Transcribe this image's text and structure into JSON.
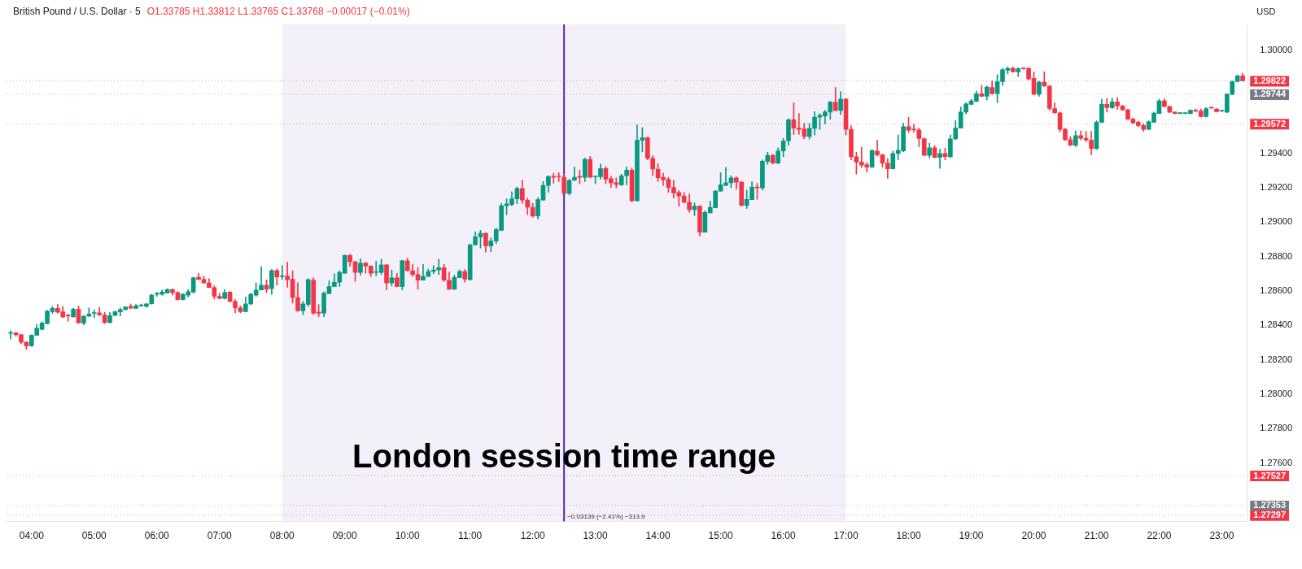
{
  "chart_data": {
    "type": "candlestick",
    "title": "British Pound / U.S. Dollar · 5",
    "subtitle": "O1.33785 H1.33812 L1.33765 C1.33768 −0.00017 (−0.01%)",
    "ylabel": "USD",
    "x": [
      3.6667,
      3.75,
      3.8333,
      3.9167,
      4,
      4.0833,
      4.1667,
      4.25,
      4.3333,
      4.4167,
      4.5,
      4.5833,
      4.6667,
      4.75,
      4.8333,
      4.9167,
      5,
      5.0833,
      5.1667,
      5.25,
      5.3333,
      5.4167,
      5.5,
      5.5833,
      5.6667,
      5.75,
      5.8333,
      5.9167,
      6,
      6.0833,
      6.1667,
      6.25,
      6.3333,
      6.4167,
      6.5,
      6.5833,
      6.6667,
      6.75,
      6.8333,
      6.9167,
      7,
      7.0833,
      7.1667,
      7.25,
      7.3333,
      7.4167,
      7.5,
      7.5833,
      7.6667,
      7.75,
      7.8333,
      7.9167,
      8,
      8.0833,
      8.1667,
      8.25,
      8.3333,
      8.4167,
      8.5,
      8.5833,
      8.6667,
      8.75,
      8.8333,
      8.9167,
      9,
      9.0833,
      9.1667,
      9.25,
      9.3333,
      9.4167,
      9.5,
      9.5833,
      9.6667,
      9.75,
      9.8333,
      9.9167,
      10,
      10.0833,
      10.1667,
      10.25,
      10.3333,
      10.4167,
      10.5,
      10.5833,
      10.6667,
      10.75,
      10.8333,
      10.9167,
      11,
      11.0833,
      11.1667,
      11.25,
      11.3333,
      11.4167,
      11.5,
      11.5833,
      11.6667,
      11.75,
      11.8333,
      11.9167,
      12,
      12.0833,
      12.1667,
      12.25,
      12.3333,
      12.4167,
      12.5,
      12.5833,
      12.6667,
      12.75,
      12.8333,
      12.9167,
      13,
      13.0833,
      13.1667,
      13.25,
      13.3333,
      13.4167,
      13.5,
      13.5833,
      13.6667,
      13.75,
      13.8333,
      13.9167,
      14,
      14.0833,
      14.1667,
      14.25,
      14.3333,
      14.4167,
      14.5,
      14.5833,
      14.6667,
      14.75,
      14.8333,
      14.9167,
      15,
      15.0833,
      15.1667,
      15.25,
      15.3333,
      15.4167,
      15.5,
      15.5833,
      15.6667,
      15.75,
      15.8333,
      15.9167,
      16,
      16.0833,
      16.1667,
      16.25,
      16.3333,
      16.4167,
      16.5,
      16.5833,
      16.6667,
      16.75,
      16.8333,
      16.9167,
      17,
      17.0833,
      17.1667,
      17.25,
      17.3333,
      17.4167,
      17.5,
      17.5833,
      17.6667,
      17.75,
      17.8333,
      17.9167,
      18,
      18.0833,
      18.1667,
      18.25,
      18.3333,
      18.4167,
      18.5,
      18.5833,
      18.6667,
      18.75,
      18.8333,
      18.9167,
      19,
      19.0833,
      19.1667,
      19.25,
      19.3333,
      19.4167,
      19.5,
      19.5833,
      19.6667,
      19.75,
      19.8333,
      19.9167,
      20,
      20.0833,
      20.1667,
      20.25,
      20.3333,
      20.4167,
      20.5,
      20.5833,
      20.6667,
      20.75,
      20.8333,
      20.9167,
      21,
      21.0833,
      21.1667,
      21.25,
      21.3333,
      21.4167,
      21.5,
      21.5833,
      21.6667,
      21.75,
      21.8333,
      21.9167,
      22,
      22.0833,
      22.1667,
      22.25,
      22.3333,
      22.4167,
      22.5,
      22.5833,
      22.6667,
      22.75,
      22.8333,
      22.9167,
      23,
      23.0833,
      23.1667,
      23.25,
      23.3333
    ],
    "ohlc": [
      [
        1.28354,
        1.28369,
        1.28322,
        1.28354
      ],
      [
        1.28357,
        1.2836,
        1.28337,
        1.28346
      ],
      [
        1.28346,
        1.28348,
        1.28292,
        1.28303
      ],
      [
        1.28303,
        1.28306,
        1.28261,
        1.28281
      ],
      [
        1.28281,
        1.28346,
        1.28278,
        1.28343
      ],
      [
        1.28343,
        1.28406,
        1.2834,
        1.28384
      ],
      [
        1.28377,
        1.28421,
        1.28374,
        1.28414
      ],
      [
        1.28411,
        1.28488,
        1.28408,
        1.28483
      ],
      [
        1.2848,
        1.2851,
        1.2847,
        1.28499
      ],
      [
        1.28499,
        1.28522,
        1.2847,
        1.28477
      ],
      [
        1.28479,
        1.2851,
        1.28445,
        1.28449
      ],
      [
        1.28458,
        1.28465,
        1.28424,
        1.28455
      ],
      [
        1.28449,
        1.28499,
        1.28449,
        1.28494
      ],
      [
        1.28494,
        1.28513,
        1.28414,
        1.28414
      ],
      [
        1.28414,
        1.28458,
        1.28402,
        1.28454
      ],
      [
        1.28454,
        1.28502,
        1.28451,
        1.28467
      ],
      [
        1.2847,
        1.28491,
        1.28446,
        1.28471
      ],
      [
        1.28473,
        1.28505,
        1.28458,
        1.28461
      ],
      [
        1.28461,
        1.28476,
        1.28411,
        1.28417
      ],
      [
        1.28417,
        1.28476,
        1.28414,
        1.28458
      ],
      [
        1.28458,
        1.28483,
        1.28458,
        1.2848
      ],
      [
        1.28479,
        1.28502,
        1.28455,
        1.28492
      ],
      [
        1.28491,
        1.2851,
        1.28491,
        1.28508
      ],
      [
        1.2851,
        1.28525,
        1.28498,
        1.28501
      ],
      [
        1.28499,
        1.28522,
        1.28499,
        1.28514
      ],
      [
        1.28514,
        1.28525,
        1.2851,
        1.28518
      ],
      [
        1.28511,
        1.28529,
        1.28505,
        1.28525
      ],
      [
        1.28526,
        1.28582,
        1.28523,
        1.28576
      ],
      [
        1.28581,
        1.28594,
        1.28569,
        1.28582
      ],
      [
        1.28581,
        1.28606,
        1.28576,
        1.28594
      ],
      [
        1.28588,
        1.28613,
        1.28588,
        1.28609
      ],
      [
        1.28609,
        1.28612,
        1.28576,
        1.28591
      ],
      [
        1.28591,
        1.28597,
        1.28547,
        1.2855
      ],
      [
        1.2855,
        1.28585,
        1.28547,
        1.28581
      ],
      [
        1.28576,
        1.28609,
        1.28565,
        1.28596
      ],
      [
        1.28594,
        1.2868,
        1.28588,
        1.28677
      ],
      [
        1.2868,
        1.28702,
        1.28665,
        1.28668
      ],
      [
        1.28668,
        1.28687,
        1.28647,
        1.28647
      ],
      [
        1.28647,
        1.28672,
        1.2862,
        1.2862
      ],
      [
        1.2862,
        1.2863,
        1.28554,
        1.28569
      ],
      [
        1.28569,
        1.28587,
        1.28554,
        1.28557
      ],
      [
        1.28557,
        1.28609,
        1.28553,
        1.28591
      ],
      [
        1.28594,
        1.28597,
        1.28538,
        1.28539
      ],
      [
        1.28539,
        1.28551,
        1.28473,
        1.28502
      ],
      [
        1.28502,
        1.28514,
        1.28473,
        1.2848
      ],
      [
        1.2848,
        1.28565,
        1.28479,
        1.28525
      ],
      [
        1.28525,
        1.28588,
        1.2852,
        1.28581
      ],
      [
        1.28576,
        1.28647,
        1.28569,
        1.28606
      ],
      [
        1.28606,
        1.28742,
        1.28606,
        1.28634
      ],
      [
        1.28634,
        1.28665,
        1.28591,
        1.2861
      ],
      [
        1.28614,
        1.28725,
        1.2858,
        1.28719
      ],
      [
        1.28719,
        1.28728,
        1.28634,
        1.28681
      ],
      [
        1.28684,
        1.28748,
        1.28666,
        1.28687
      ],
      [
        1.28687,
        1.28767,
        1.28622,
        1.28666
      ],
      [
        1.28669,
        1.28718,
        1.2853,
        1.28562
      ],
      [
        1.28562,
        1.28648,
        1.28482,
        1.28485
      ],
      [
        1.28485,
        1.2854,
        1.28462,
        1.28525
      ],
      [
        1.28522,
        1.28672,
        1.28511,
        1.28666
      ],
      [
        1.28663,
        1.28678,
        1.28465,
        1.28471
      ],
      [
        1.28477,
        1.28521,
        1.2845,
        1.28471
      ],
      [
        1.28471,
        1.28595,
        1.28451,
        1.28588
      ],
      [
        1.28585,
        1.28659,
        1.28585,
        1.28626
      ],
      [
        1.28626,
        1.28699,
        1.28626,
        1.28651
      ],
      [
        1.28651,
        1.28718,
        1.28626,
        1.28708
      ],
      [
        1.28703,
        1.2881,
        1.28703,
        1.28807
      ],
      [
        1.28807,
        1.28814,
        1.28743,
        1.2877
      ],
      [
        1.2877,
        1.28773,
        1.28656,
        1.28708
      ],
      [
        1.28708,
        1.28788,
        1.28691,
        1.28762
      ],
      [
        1.28762,
        1.28767,
        1.28703,
        1.28745
      ],
      [
        1.28745,
        1.28748,
        1.28684,
        1.28703
      ],
      [
        1.28708,
        1.28773,
        1.28688,
        1.28711
      ],
      [
        1.28708,
        1.28785,
        1.28696,
        1.28752
      ],
      [
        1.28752,
        1.28755,
        1.28607,
        1.28647
      ],
      [
        1.28647,
        1.28722,
        1.28629,
        1.28677
      ],
      [
        1.28677,
        1.28703,
        1.28625,
        1.28626
      ],
      [
        1.28626,
        1.28779,
        1.28607,
        1.28776
      ],
      [
        1.28776,
        1.28791,
        1.28717,
        1.28718
      ],
      [
        1.28718,
        1.28755,
        1.28684,
        1.28696
      ],
      [
        1.28696,
        1.28737,
        1.2861,
        1.28663
      ],
      [
        1.28663,
        1.28755,
        1.28663,
        1.28685
      ],
      [
        1.28685,
        1.28728,
        1.28684,
        1.28714
      ],
      [
        1.28714,
        1.28748,
        1.287,
        1.28722
      ],
      [
        1.28722,
        1.28785,
        1.28696,
        1.28736
      ],
      [
        1.28736,
        1.28755,
        1.28656,
        1.28663
      ],
      [
        1.28663,
        1.28711,
        1.2861,
        1.2861
      ],
      [
        1.2861,
        1.28693,
        1.2861,
        1.28679
      ],
      [
        1.28678,
        1.28722,
        1.28678,
        1.28714
      ],
      [
        1.28714,
        1.28725,
        1.28651,
        1.28669
      ],
      [
        1.28666,
        1.28873,
        1.28663,
        1.28869
      ],
      [
        1.28869,
        1.28945,
        1.28866,
        1.28915
      ],
      [
        1.28915,
        1.28953,
        1.2885,
        1.28936
      ],
      [
        1.28936,
        1.28939,
        1.28826,
        1.28862
      ],
      [
        1.28862,
        1.28909,
        1.28829,
        1.28891
      ],
      [
        1.28891,
        1.28965,
        1.28876,
        1.28958
      ],
      [
        1.28953,
        1.2911,
        1.2895,
        1.29096
      ],
      [
        1.29096,
        1.29136,
        1.29044,
        1.29106
      ],
      [
        1.29103,
        1.29176,
        1.29096,
        1.29136
      ],
      [
        1.29136,
        1.29205,
        1.29107,
        1.29196
      ],
      [
        1.29196,
        1.29244,
        1.2911,
        1.29128
      ],
      [
        1.29128,
        1.2914,
        1.29044,
        1.29087
      ],
      [
        1.29087,
        1.2911,
        1.29029,
        1.29036
      ],
      [
        1.29036,
        1.29143,
        1.29019,
        1.29131
      ],
      [
        1.29128,
        1.29236,
        1.29128,
        1.29214
      ],
      [
        1.29214,
        1.2927,
        1.29175,
        1.29266
      ],
      [
        1.29266,
        1.29285,
        1.29226,
        1.29261
      ],
      [
        1.29266,
        1.29288,
        1.29236,
        1.29264
      ],
      [
        1.29261,
        1.29279,
        1.29167,
        1.29167
      ],
      [
        1.29167,
        1.2925,
        1.29158,
        1.29244
      ],
      [
        1.29244,
        1.29321,
        1.29241,
        1.29261
      ],
      [
        1.29264,
        1.29303,
        1.29224,
        1.29261
      ],
      [
        1.29261,
        1.29374,
        1.29236,
        1.29365
      ],
      [
        1.29365,
        1.29383,
        1.29261,
        1.29261
      ],
      [
        1.29264,
        1.2927,
        1.29224,
        1.29267
      ],
      [
        1.29264,
        1.29338,
        1.2925,
        1.29312
      ],
      [
        1.29312,
        1.29324,
        1.29224,
        1.2925
      ],
      [
        1.29253,
        1.29267,
        1.29202,
        1.29229
      ],
      [
        1.29229,
        1.29258,
        1.29199,
        1.2922
      ],
      [
        1.29217,
        1.29279,
        1.29214,
        1.2927
      ],
      [
        1.2927,
        1.29321,
        1.29217,
        1.29303
      ],
      [
        1.29303,
        1.29315,
        1.29118,
        1.29125
      ],
      [
        1.29125,
        1.29566,
        1.29122,
        1.29476
      ],
      [
        1.29476,
        1.29549,
        1.29409,
        1.29492
      ],
      [
        1.29492,
        1.29495,
        1.29362,
        1.29371
      ],
      [
        1.29371,
        1.29386,
        1.2927,
        1.29309
      ],
      [
        1.29309,
        1.29341,
        1.29236,
        1.29258
      ],
      [
        1.29261,
        1.29285,
        1.29214,
        1.29247
      ],
      [
        1.2925,
        1.29261,
        1.29173,
        1.29202
      ],
      [
        1.29202,
        1.29244,
        1.2914,
        1.2917
      ],
      [
        1.29173,
        1.29184,
        1.29093,
        1.29152
      ],
      [
        1.29152,
        1.29173,
        1.29113,
        1.29116
      ],
      [
        1.29116,
        1.29164,
        1.29058,
        1.29073
      ],
      [
        1.29073,
        1.29113,
        1.29039,
        1.29093
      ],
      [
        1.29093,
        1.29096,
        1.28921,
        1.28942
      ],
      [
        1.28942,
        1.29066,
        1.28942,
        1.29057
      ],
      [
        1.29054,
        1.29122,
        1.29054,
        1.29087
      ],
      [
        1.29084,
        1.29184,
        1.29084,
        1.29181
      ],
      [
        1.29181,
        1.29288,
        1.29181,
        1.29217
      ],
      [
        1.29214,
        1.29318,
        1.29214,
        1.29229
      ],
      [
        1.29229,
        1.2927,
        1.29199,
        1.29258
      ],
      [
        1.29258,
        1.29264,
        1.29192,
        1.29233
      ],
      [
        1.29233,
        1.29236,
        1.29096,
        1.29098
      ],
      [
        1.29098,
        1.29187,
        1.2908,
        1.29133
      ],
      [
        1.29131,
        1.29235,
        1.29131,
        1.29204
      ],
      [
        1.29204,
        1.29226,
        1.29133,
        1.29199
      ],
      [
        1.29199,
        1.29362,
        1.29187,
        1.29355
      ],
      [
        1.29353,
        1.29407,
        1.29335,
        1.29389
      ],
      [
        1.29389,
        1.29395,
        1.2934,
        1.29344
      ],
      [
        1.29344,
        1.29433,
        1.2934,
        1.29414
      ],
      [
        1.29414,
        1.29488,
        1.2938,
        1.29473
      ],
      [
        1.29473,
        1.29602,
        1.29448,
        1.29596
      ],
      [
        1.29596,
        1.29695,
        1.2951,
        1.29547
      ],
      [
        1.29547,
        1.29632,
        1.2951,
        1.2954
      ],
      [
        1.29543,
        1.29574,
        1.29484,
        1.29498
      ],
      [
        1.29498,
        1.29574,
        1.29484,
        1.29546
      ],
      [
        1.29546,
        1.29643,
        1.29507,
        1.29611
      ],
      [
        1.29611,
        1.29632,
        1.2954,
        1.29621
      ],
      [
        1.29618,
        1.29651,
        1.29572,
        1.2964
      ],
      [
        1.2964,
        1.29703,
        1.29599,
        1.29698
      ],
      [
        1.29698,
        1.29784,
        1.29646,
        1.29649
      ],
      [
        1.29649,
        1.29759,
        1.29626,
        1.29716
      ],
      [
        1.29716,
        1.29718,
        1.29507,
        1.2954
      ],
      [
        1.2954,
        1.29561,
        1.29362,
        1.2938
      ],
      [
        1.2938,
        1.29407,
        1.2928,
        1.2935
      ],
      [
        1.2935,
        1.29436,
        1.29317,
        1.29332
      ],
      [
        1.29335,
        1.29347,
        1.2929,
        1.2932
      ],
      [
        1.2932,
        1.29421,
        1.29317,
        1.29417
      ],
      [
        1.29414,
        1.29478,
        1.29384,
        1.29392
      ],
      [
        1.29392,
        1.29395,
        1.2932,
        1.29344
      ],
      [
        1.29344,
        1.2937,
        1.29255,
        1.2931
      ],
      [
        1.2931,
        1.29414,
        1.2931,
        1.29399
      ],
      [
        1.29399,
        1.29507,
        1.29362,
        1.29418
      ],
      [
        1.29415,
        1.29575,
        1.2941,
        1.29555
      ],
      [
        1.29555,
        1.2961,
        1.29521,
        1.29535
      ],
      [
        1.2954,
        1.2957,
        1.29522,
        1.29537
      ],
      [
        1.29537,
        1.29547,
        1.29439,
        1.29486
      ],
      [
        1.29486,
        1.29489,
        1.29389,
        1.29389
      ],
      [
        1.29389,
        1.29458,
        1.29374,
        1.29433
      ],
      [
        1.29433,
        1.29445,
        1.29374,
        1.29377
      ],
      [
        1.29377,
        1.29424,
        1.29313,
        1.29399
      ],
      [
        1.29399,
        1.2943,
        1.29362,
        1.29381
      ],
      [
        1.2938,
        1.29507,
        1.29377,
        1.29484
      ],
      [
        1.29484,
        1.29592,
        1.2948,
        1.29547
      ],
      [
        1.29547,
        1.2967,
        1.29547,
        1.2964
      ],
      [
        1.2964,
        1.29695,
        1.29629,
        1.29688
      ],
      [
        1.29685,
        1.29715,
        1.29683,
        1.29706
      ],
      [
        1.29703,
        1.29762,
        1.297,
        1.29747
      ],
      [
        1.29747,
        1.29795,
        1.29729,
        1.29732
      ],
      [
        1.29732,
        1.29792,
        1.29711,
        1.29786
      ],
      [
        1.29784,
        1.29821,
        1.29744,
        1.29747
      ],
      [
        1.29747,
        1.29858,
        1.29695,
        1.29817
      ],
      [
        1.29817,
        1.29895,
        1.29795,
        1.29886
      ],
      [
        1.29883,
        1.29904,
        1.29862,
        1.29895
      ],
      [
        1.29895,
        1.29904,
        1.29871,
        1.29874
      ],
      [
        1.29874,
        1.29898,
        1.29847,
        1.29892
      ],
      [
        1.29895,
        1.29898,
        1.29889,
        1.29892
      ],
      [
        1.29895,
        1.29898,
        1.29827,
        1.29833
      ],
      [
        1.29836,
        1.29874,
        1.29741,
        1.29744
      ],
      [
        1.29744,
        1.29821,
        1.29732,
        1.29814
      ],
      [
        1.29814,
        1.29874,
        1.29789,
        1.29792
      ],
      [
        1.29792,
        1.29795,
        1.29651,
        1.29661
      ],
      [
        1.29661,
        1.29695,
        1.29632,
        1.29636
      ],
      [
        1.29636,
        1.2964,
        1.29525,
        1.2954
      ],
      [
        1.2954,
        1.29547,
        1.29473,
        1.2948
      ],
      [
        1.2948,
        1.29498,
        1.29445,
        1.29448
      ],
      [
        1.29448,
        1.29531,
        1.29439,
        1.29503
      ],
      [
        1.29503,
        1.29531,
        1.29478,
        1.29488
      ],
      [
        1.29488,
        1.29528,
        1.29469,
        1.29478
      ],
      [
        1.29478,
        1.29528,
        1.29392,
        1.29429
      ],
      [
        1.29427,
        1.2959,
        1.29424,
        1.29581
      ],
      [
        1.29581,
        1.29715,
        1.29577,
        1.29685
      ],
      [
        1.29685,
        1.29721,
        1.2964,
        1.29666
      ],
      [
        1.29666,
        1.29721,
        1.29661,
        1.297
      ],
      [
        1.297,
        1.29724,
        1.29655,
        1.29676
      ],
      [
        1.29676,
        1.2968,
        1.29649,
        1.29653
      ],
      [
        1.29653,
        1.29658,
        1.29596,
        1.29599
      ],
      [
        1.29599,
        1.29606,
        1.29572,
        1.29577
      ],
      [
        1.29581,
        1.29587,
        1.29555,
        1.29562
      ],
      [
        1.29562,
        1.29572,
        1.29528,
        1.2954
      ],
      [
        1.2954,
        1.2959,
        1.2954,
        1.29584
      ],
      [
        1.29581,
        1.2964,
        1.29581,
        1.29635
      ],
      [
        1.29632,
        1.29715,
        1.29632,
        1.29706
      ],
      [
        1.29706,
        1.29718,
        1.2967,
        1.29673
      ],
      [
        1.29673,
        1.29673,
        1.29636,
        1.2964
      ],
      [
        1.2964,
        1.2964,
        1.29629,
        1.29632
      ],
      [
        1.29632,
        1.29635,
        1.29629,
        1.29632
      ],
      [
        1.29632,
        1.29635,
        1.29629,
        1.29632
      ],
      [
        1.29632,
        1.29653,
        1.29629,
        1.29651
      ],
      [
        1.29651,
        1.29658,
        1.2964,
        1.29646
      ],
      [
        1.29646,
        1.29658,
        1.29611,
        1.29614
      ],
      [
        1.29614,
        1.29667,
        1.29611,
        1.29661
      ],
      [
        1.29666,
        1.29667,
        1.29661,
        1.29664
      ],
      [
        1.29658,
        1.29661,
        1.2964,
        1.29643
      ],
      [
        1.29646,
        1.29649,
        1.29643,
        1.29646
      ],
      [
        1.2964,
        1.29747,
        1.29637,
        1.29744
      ],
      [
        1.29744,
        1.29821,
        1.29741,
        1.29818
      ],
      [
        1.29818,
        1.29857,
        1.29815,
        1.29851
      ],
      [
        1.29851,
        1.29866,
        1.29821,
        1.29822
      ]
    ],
    "colors": [
      "#089981",
      "#f23645",
      "#f23645",
      "#f23645",
      "#089981",
      "#089981",
      "#089981",
      "#089981",
      "#089981",
      "#f23645",
      "#f23645",
      "#f23645",
      "#089981",
      "#f23645",
      "#089981",
      "#089981",
      "#089981",
      "#f23645",
      "#f23645",
      "#089981",
      "#089981",
      "#089981",
      "#089981",
      "#f23645",
      "#089981",
      "#089981",
      "#089981",
      "#089981",
      "#089981",
      "#089981",
      "#089981",
      "#f23645",
      "#f23645",
      "#089981",
      "#089981",
      "#089981",
      "#f23645",
      "#f23645",
      "#f23645",
      "#f23645",
      "#f23645",
      "#089981",
      "#f23645",
      "#f23645",
      "#f23645",
      "#089981",
      "#089981",
      "#089981",
      "#089981",
      "#f23645",
      "#089981",
      "#f23645",
      "#089981",
      "#f23645",
      "#f23645",
      "#f23645",
      "#089981",
      "#089981",
      "#f23645",
      "#f23645",
      "#089981",
      "#089981",
      "#089981",
      "#089981",
      "#089981",
      "#f23645",
      "#f23645",
      "#089981",
      "#f23645",
      "#f23645",
      "#089981",
      "#089981",
      "#f23645",
      "#089981",
      "#f23645",
      "#089981",
      "#f23645",
      "#f23645",
      "#f23645",
      "#089981",
      "#089981",
      "#089981",
      "#089981",
      "#f23645",
      "#f23645",
      "#089981",
      "#089981",
      "#f23645",
      "#089981",
      "#089981",
      "#089981",
      "#f23645",
      "#089981",
      "#089981",
      "#089981",
      "#089981",
      "#089981",
      "#089981",
      "#f23645",
      "#f23645",
      "#f23645",
      "#089981",
      "#089981",
      "#089981",
      "#f23645",
      "#f23645",
      "#f23645",
      "#089981",
      "#089981",
      "#f23645",
      "#089981",
      "#f23645",
      "#089981",
      "#089981",
      "#f23645",
      "#f23645",
      "#f23645",
      "#089981",
      "#089981",
      "#f23645",
      "#089981",
      "#089981",
      "#f23645",
      "#f23645",
      "#f23645",
      "#f23645",
      "#f23645",
      "#f23645",
      "#f23645",
      "#f23645",
      "#f23645",
      "#089981",
      "#f23645",
      "#089981",
      "#089981",
      "#089981",
      "#089981",
      "#089981",
      "#089981",
      "#f23645",
      "#f23645",
      "#089981",
      "#089981",
      "#f23645",
      "#089981",
      "#089981",
      "#f23645",
      "#089981",
      "#089981",
      "#089981",
      "#f23645",
      "#f23645",
      "#f23645",
      "#089981",
      "#089981",
      "#089981",
      "#089981",
      "#089981",
      "#f23645",
      "#089981",
      "#f23645",
      "#f23645",
      "#f23645",
      "#f23645",
      "#f23645",
      "#089981",
      "#f23645",
      "#f23645",
      "#f23645",
      "#089981",
      "#089981",
      "#089981",
      "#f23645",
      "#f23645",
      "#f23645",
      "#f23645",
      "#089981",
      "#f23645",
      "#089981",
      "#f23645",
      "#089981",
      "#089981",
      "#089981",
      "#089981",
      "#089981",
      "#089981",
      "#f23645",
      "#089981",
      "#f23645",
      "#089981",
      "#089981",
      "#089981",
      "#f23645",
      "#089981",
      "#f23645",
      "#f23645",
      "#f23645",
      "#089981",
      "#f23645",
      "#f23645",
      "#f23645",
      "#f23645",
      "#f23645",
      "#f23645",
      "#089981",
      "#f23645",
      "#f23645",
      "#f23645",
      "#089981",
      "#089981",
      "#f23645",
      "#089981",
      "#f23645",
      "#f23645",
      "#f23645",
      "#f23645",
      "#f23645",
      "#f23645",
      "#089981",
      "#089981",
      "#089981",
      "#f23645",
      "#f23645",
      "#f23645",
      "#089981",
      "#089981",
      "#089981",
      "#f23645",
      "#f23645",
      "#089981",
      "#f23645",
      "#f23645",
      "#089981",
      "#089981",
      "#089981",
      "#089981",
      "#f23645"
    ],
    "xlim": [
      3.6,
      23.4
    ],
    "xticks": [
      {
        "value": 4,
        "label": "04:00"
      },
      {
        "value": 5,
        "label": "05:00"
      },
      {
        "value": 6,
        "label": "06:00"
      },
      {
        "value": 7,
        "label": "07:00"
      },
      {
        "value": 8,
        "label": "08:00"
      },
      {
        "value": 9,
        "label": "09:00"
      },
      {
        "value": 10,
        "label": "10:00"
      },
      {
        "value": 11,
        "label": "11:00"
      },
      {
        "value": 12,
        "label": "12:00"
      },
      {
        "value": 13,
        "label": "13:00"
      },
      {
        "value": 14,
        "label": "14:00"
      },
      {
        "value": 15,
        "label": "15:00"
      },
      {
        "value": 16,
        "label": "16:00"
      },
      {
        "value": 17,
        "label": "17:00"
      },
      {
        "value": 18,
        "label": "18:00"
      },
      {
        "value": 19,
        "label": "19:00"
      },
      {
        "value": 20,
        "label": "20:00"
      },
      {
        "value": 21,
        "label": "21:00"
      },
      {
        "value": 22,
        "label": "22:00"
      },
      {
        "value": 23,
        "label": "23:00"
      }
    ],
    "ylim": [
      1.2726,
      1.3015
    ],
    "yticks": [
      {
        "value": 1.276,
        "label": "1.27600"
      },
      {
        "value": 1.278,
        "label": "1.27800"
      },
      {
        "value": 1.28,
        "label": "1.28000"
      },
      {
        "value": 1.282,
        "label": "1.28200"
      },
      {
        "value": 1.284,
        "label": "1.28400"
      },
      {
        "value": 1.286,
        "label": "1.28600"
      },
      {
        "value": 1.288,
        "label": "1.28800"
      },
      {
        "value": 1.29,
        "label": "1.29000"
      },
      {
        "value": 1.292,
        "label": "1.29200"
      },
      {
        "value": 1.294,
        "label": "1.29400"
      },
      {
        "value": 1.3,
        "label": "1.30000"
      }
    ],
    "bands": [
      {
        "axis": "x",
        "from": 8,
        "to": 17,
        "label": "London session time range",
        "color": "#f3f0fa"
      }
    ],
    "ref_lines": [
      {
        "axis": "x",
        "value": 12.5,
        "label": "−0.03139 (−2.41%) −313.9",
        "color": "#512da8"
      },
      {
        "axis": "y",
        "value": 1.29822,
        "label": "1.29822",
        "color": "#f23645",
        "line_style": "dotted"
      },
      {
        "axis": "y",
        "value": 1.29744,
        "label": "1.29744",
        "color": "#787b86",
        "line_style": "dotted"
      },
      {
        "axis": "y",
        "value": 1.29572,
        "label": "1.29572",
        "color": "#f23645",
        "line_style": "dotted"
      },
      {
        "axis": "y",
        "value": 1.27527,
        "label": "1.27527",
        "color": "#f23645",
        "line_style": "dotted"
      },
      {
        "axis": "y",
        "value": 1.27353,
        "label": "1.27353",
        "color": "#787b86",
        "line_style": "dotted"
      },
      {
        "axis": "y",
        "value": 1.27297,
        "label": "1.27297",
        "color": "#f23645",
        "line_style": "dotted"
      }
    ]
  }
}
